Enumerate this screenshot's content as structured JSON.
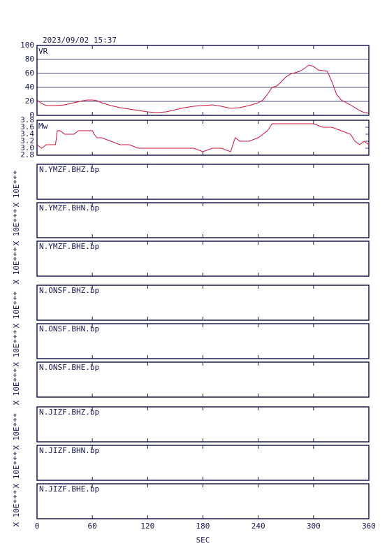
{
  "chart_data": [
    {
      "type": "line",
      "title": "2023/09/02 15:37",
      "x": [
        0,
        5,
        10,
        20,
        30,
        40,
        50,
        55,
        60,
        65,
        70,
        80,
        90,
        100,
        110,
        120,
        130,
        140,
        150,
        160,
        170,
        180,
        190,
        200,
        210,
        220,
        230,
        240,
        245,
        250,
        255,
        260,
        265,
        270,
        275,
        280,
        285,
        290,
        295,
        300,
        305,
        310,
        315,
        320,
        325,
        330,
        340,
        350,
        355,
        360
      ],
      "series": [
        {
          "name": "VR",
          "color": "#d0103a",
          "values": [
            22,
            17,
            14,
            14,
            15,
            18,
            21,
            22,
            22,
            21,
            18,
            14,
            11,
            9,
            7,
            5,
            4,
            5,
            8,
            11,
            13,
            14,
            15,
            13,
            10,
            11,
            14,
            18,
            22,
            30,
            40,
            42,
            48,
            55,
            59,
            61,
            63,
            67,
            72,
            70,
            65,
            64,
            63,
            48,
            30,
            22,
            15,
            7,
            4,
            3
          ]
        }
      ],
      "xlim": [
        0,
        360
      ],
      "xticks": [
        0,
        60,
        120,
        180,
        240,
        300,
        360
      ],
      "ylim": [
        0,
        100
      ],
      "yticks": [
        0,
        20,
        40,
        60,
        80,
        100
      ],
      "grid": true
    },
    {
      "type": "line",
      "x": [
        0,
        5,
        10,
        20,
        22,
        25,
        30,
        40,
        45,
        60,
        62,
        65,
        70,
        80,
        90,
        100,
        110,
        120,
        130,
        140,
        150,
        160,
        170,
        180,
        190,
        200,
        210,
        215,
        220,
        230,
        240,
        250,
        255,
        260,
        270,
        280,
        290,
        300,
        310,
        320,
        330,
        340,
        345,
        350,
        355,
        360
      ],
      "series": [
        {
          "name": "Mw",
          "color": "#d0103a",
          "values": [
            3.1,
            3.0,
            3.1,
            3.1,
            3.5,
            3.5,
            3.4,
            3.4,
            3.5,
            3.5,
            3.4,
            3.3,
            3.3,
            3.2,
            3.1,
            3.1,
            3.0,
            3.0,
            3.0,
            3.0,
            3.0,
            3.0,
            3.0,
            2.9,
            3.0,
            3.0,
            2.9,
            3.3,
            3.2,
            3.2,
            3.3,
            3.5,
            3.7,
            3.7,
            3.7,
            3.7,
            3.7,
            3.7,
            3.6,
            3.6,
            3.5,
            3.4,
            3.2,
            3.1,
            3.2,
            3.1
          ]
        }
      ],
      "xlim": [
        0,
        360
      ],
      "xticks": [
        0,
        60,
        120,
        180,
        240,
        300,
        360
      ],
      "ylim": [
        2.8,
        3.8
      ],
      "yticks": [
        2.8,
        {
          "value": 3,
          "label": "3.0"
        },
        3.2,
        3.4,
        3.6,
        3.8
      ],
      "grid": false
    },
    {
      "type": "waveform",
      "title": "N.YMZF.BHZ.bp",
      "ylabel": "X 10E***",
      "xlim": [
        0,
        360
      ],
      "xticks": [
        0,
        60,
        120,
        180,
        240,
        300,
        360
      ]
    },
    {
      "type": "waveform",
      "title": "N.YMZF.BHN.bp",
      "ylabel": "X 10E***",
      "xlim": [
        0,
        360
      ],
      "xticks": [
        0,
        60,
        120,
        180,
        240,
        300,
        360
      ]
    },
    {
      "type": "waveform",
      "title": "N.YMZF.BHE.bp",
      "ylabel": "X 10E***",
      "xlim": [
        0,
        360
      ],
      "xticks": [
        0,
        60,
        120,
        180,
        240,
        300,
        360
      ]
    },
    {
      "type": "waveform",
      "title": "N.ONSF.BHZ.bp",
      "ylabel": "X 10E***",
      "xlim": [
        0,
        360
      ],
      "xticks": [
        0,
        60,
        120,
        180,
        240,
        300,
        360
      ]
    },
    {
      "type": "waveform",
      "title": "N.ONSF.BHN.bp",
      "ylabel": "X 10E***",
      "xlim": [
        0,
        360
      ],
      "xticks": [
        0,
        60,
        120,
        180,
        240,
        300,
        360
      ]
    },
    {
      "type": "waveform",
      "title": "N.ONSF.BHE.bp",
      "ylabel": "X 10E***",
      "xlim": [
        0,
        360
      ],
      "xticks": [
        0,
        60,
        120,
        180,
        240,
        300,
        360
      ]
    },
    {
      "type": "waveform",
      "title": "N.JIZF.BHZ.bp",
      "ylabel": "X 10E***",
      "xlim": [
        0,
        360
      ],
      "xticks": [
        0,
        60,
        120,
        180,
        240,
        300,
        360
      ]
    },
    {
      "type": "waveform",
      "title": "N.JIZF.BHN.bp",
      "ylabel": "X 10E***",
      "xlim": [
        0,
        360
      ],
      "xticks": [
        0,
        60,
        120,
        180,
        240,
        300,
        360
      ]
    },
    {
      "type": "waveform",
      "title": "N.JIZF.BHE.bp",
      "ylabel": "X 10E***",
      "xlim": [
        0,
        360
      ],
      "xticks": [
        0,
        60,
        120,
        180,
        240,
        300,
        360
      ],
      "xlabel": "SEC"
    }
  ]
}
